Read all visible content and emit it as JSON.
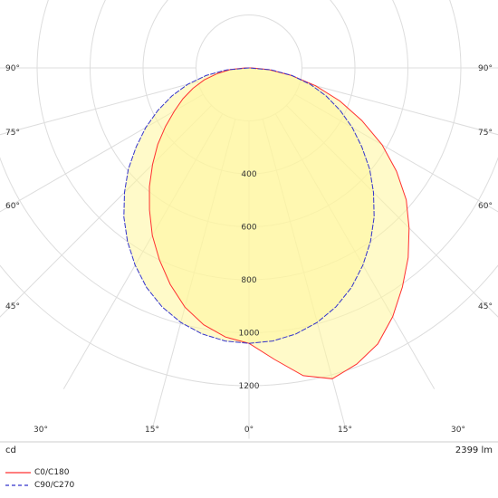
{
  "chart_data": {
    "type": "polar-intensity",
    "unit": "cd",
    "lumen_text": "2399 lm",
    "radial_ticks": [
      200,
      400,
      600,
      800,
      1000,
      1200
    ],
    "radial_labels": [
      "400",
      "600",
      "800",
      "1000",
      "1200"
    ],
    "angle_labels_side": [
      "90°",
      "75°",
      "60°",
      "45°"
    ],
    "angle_labels_bottom": [
      "30°",
      "15°",
      "0°",
      "15°",
      "30°"
    ],
    "grid_angles": [
      15,
      30,
      45,
      60,
      75,
      90
    ],
    "series": [
      {
        "name": "C0/C180",
        "color": "#ff3030",
        "dash": false,
        "points": [
          [
            -90,
            15
          ],
          [
            -85,
            70
          ],
          [
            -80,
            120
          ],
          [
            -75,
            175
          ],
          [
            -70,
            225
          ],
          [
            -65,
            275
          ],
          [
            -60,
            325
          ],
          [
            -55,
            385
          ],
          [
            -50,
            450
          ],
          [
            -45,
            515
          ],
          [
            -40,
            585
          ],
          [
            -35,
            655
          ],
          [
            -30,
            730
          ],
          [
            -25,
            800
          ],
          [
            -20,
            870
          ],
          [
            -15,
            935
          ],
          [
            -10,
            985
          ],
          [
            -5,
            1020
          ],
          [
            0,
            1040
          ],
          [
            5,
            1105
          ],
          [
            10,
            1180
          ],
          [
            15,
            1215
          ],
          [
            20,
            1190
          ],
          [
            25,
            1150
          ],
          [
            30,
            1085
          ],
          [
            35,
            1010
          ],
          [
            40,
            935
          ],
          [
            45,
            855
          ],
          [
            50,
            775
          ],
          [
            55,
            680
          ],
          [
            60,
            580
          ],
          [
            65,
            470
          ],
          [
            70,
            365
          ],
          [
            75,
            260
          ],
          [
            80,
            160
          ],
          [
            85,
            75
          ],
          [
            90,
            12
          ]
        ]
      },
      {
        "name": "C90/C270",
        "color": "#3333cc",
        "dash": true,
        "points": [
          [
            -90,
            0
          ],
          [
            -85,
            85
          ],
          [
            -80,
            165
          ],
          [
            -75,
            240
          ],
          [
            -70,
            310
          ],
          [
            -65,
            380
          ],
          [
            -60,
            450
          ],
          [
            -55,
            520
          ],
          [
            -50,
            595
          ],
          [
            -45,
            665
          ],
          [
            -40,
            735
          ],
          [
            -35,
            800
          ],
          [
            -30,
            860
          ],
          [
            -25,
            915
          ],
          [
            -20,
            960
          ],
          [
            -15,
            995
          ],
          [
            -10,
            1020
          ],
          [
            -5,
            1035
          ],
          [
            0,
            1040
          ],
          [
            5,
            1035
          ],
          [
            10,
            1020
          ],
          [
            15,
            995
          ],
          [
            20,
            960
          ],
          [
            25,
            915
          ],
          [
            30,
            860
          ],
          [
            35,
            800
          ],
          [
            40,
            735
          ],
          [
            45,
            665
          ],
          [
            50,
            595
          ],
          [
            55,
            520
          ],
          [
            60,
            450
          ],
          [
            65,
            380
          ],
          [
            70,
            310
          ],
          [
            75,
            240
          ],
          [
            80,
            165
          ],
          [
            85,
            85
          ],
          [
            90,
            0
          ]
        ]
      }
    ]
  }
}
